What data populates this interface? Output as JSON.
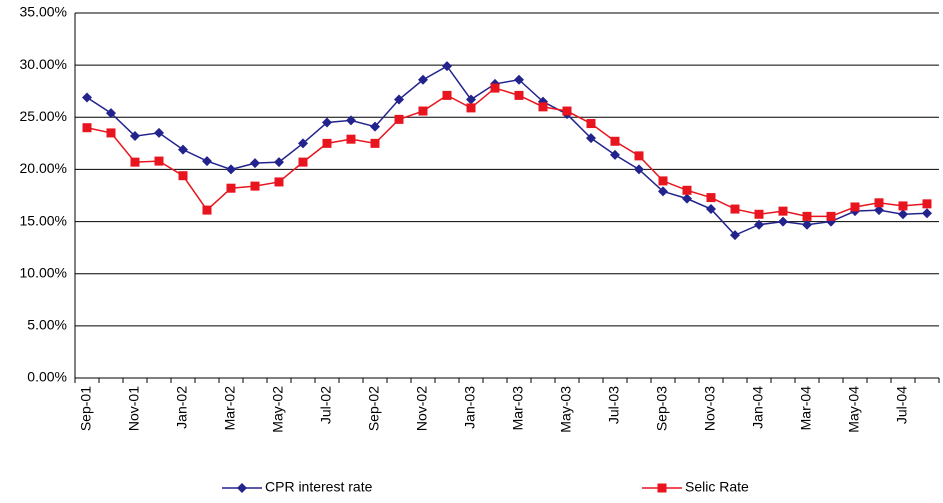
{
  "chart_data": {
    "type": "line",
    "categories": [
      "Sep-01",
      null,
      "Nov-01",
      null,
      "Jan-02",
      null,
      "Mar-02",
      null,
      "May-02",
      null,
      "Jul-02",
      null,
      "Sep-02",
      null,
      "Nov-02",
      null,
      "Jan-03",
      null,
      "Mar-03",
      null,
      "May-03",
      null,
      "Jul-03",
      null,
      "Sep-03",
      null,
      "Nov-03",
      null,
      "Jan-04",
      null,
      "Mar-04",
      null,
      "May-04",
      null,
      "Jul-04",
      null
    ],
    "series": [
      {
        "name": "CPR interest rate",
        "color": "#23238e",
        "marker": "diamond",
        "values": [
          26.9,
          25.4,
          23.2,
          23.5,
          21.9,
          20.8,
          20.0,
          20.6,
          20.7,
          22.5,
          24.5,
          24.7,
          24.1,
          26.7,
          28.6,
          29.9,
          26.7,
          28.2,
          28.6,
          26.5,
          25.3,
          23.0,
          21.4,
          20.0,
          17.9,
          17.2,
          16.2,
          13.7,
          14.7,
          15.0,
          14.7,
          15.0,
          16.0,
          16.1,
          15.7,
          15.8
        ]
      },
      {
        "name": "Selic Rate",
        "color": "#e8141e",
        "marker": "square",
        "values": [
          24.0,
          23.5,
          20.7,
          20.8,
          19.4,
          16.1,
          18.2,
          18.4,
          18.8,
          20.7,
          22.5,
          22.9,
          22.5,
          24.8,
          25.6,
          27.1,
          25.9,
          27.8,
          27.1,
          26.0,
          25.6,
          24.4,
          22.7,
          21.3,
          18.9,
          18.0,
          17.3,
          16.2,
          15.7,
          16.0,
          15.5,
          15.5,
          16.4,
          16.8,
          16.5,
          16.7
        ]
      }
    ],
    "ylim": [
      0,
      35
    ],
    "yticks": [
      {
        "value": 0,
        "label": "0.00%"
      },
      {
        "value": 5,
        "label": "5.00%"
      },
      {
        "value": 10,
        "label": "10.00%"
      },
      {
        "value": 15,
        "label": "15.00%"
      },
      {
        "value": 20,
        "label": "20.00%"
      },
      {
        "value": 25,
        "label": "25.00%"
      },
      {
        "value": 30,
        "label": "30.00%"
      },
      {
        "value": 35,
        "label": "35.00%"
      }
    ],
    "grid": true,
    "legend": "bottom"
  }
}
